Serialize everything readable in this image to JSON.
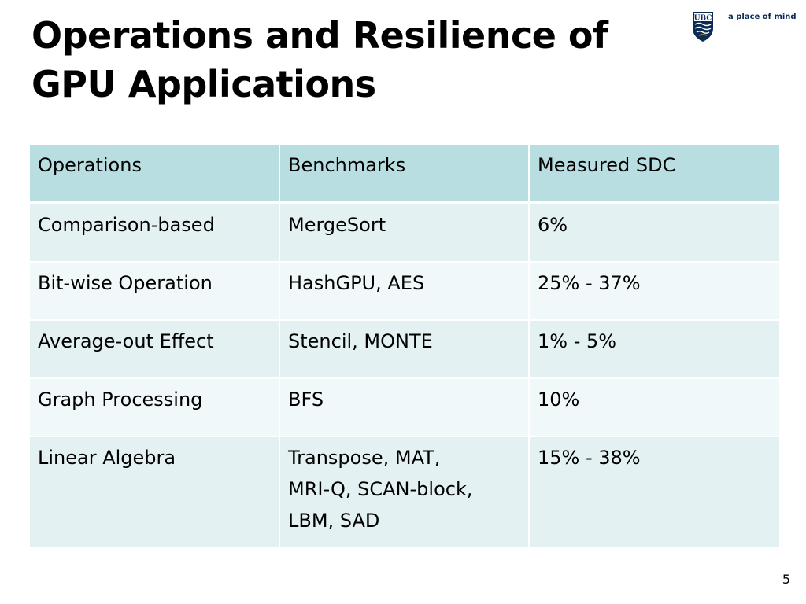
{
  "title": {
    "line1": "Operations and Resilience of",
    "line2": "GPU Applications"
  },
  "logo": {
    "crest_text": "UBC",
    "tagline": "a place of mind",
    "colors": {
      "navy": "#0b2b55",
      "gold": "#c9a227"
    }
  },
  "table": {
    "headers": [
      "Operations",
      "Benchmarks",
      "Measured SDC"
    ],
    "rows": [
      {
        "operation": "Comparison-based",
        "benchmarks": [
          "MergeSort"
        ],
        "sdc": "6%"
      },
      {
        "operation": "Bit-wise Operation",
        "benchmarks": [
          "HashGPU, AES"
        ],
        "sdc": "25% - 37%"
      },
      {
        "operation": "Average-out Effect",
        "benchmarks": [
          "Stencil, MONTE"
        ],
        "sdc": "1% - 5%"
      },
      {
        "operation": "Graph Processing",
        "benchmarks": [
          "BFS"
        ],
        "sdc": "10%"
      },
      {
        "operation": "Linear Algebra",
        "benchmarks": [
          "Transpose, MAT,",
          "MRI-Q, SCAN-block,",
          "LBM, SAD"
        ],
        "sdc": "15% - 38%"
      }
    ],
    "colors": {
      "header": "#b9dee2",
      "row_odd": "#e3f1f3",
      "row_even": "#f1f8f9"
    }
  },
  "page_number": "5"
}
